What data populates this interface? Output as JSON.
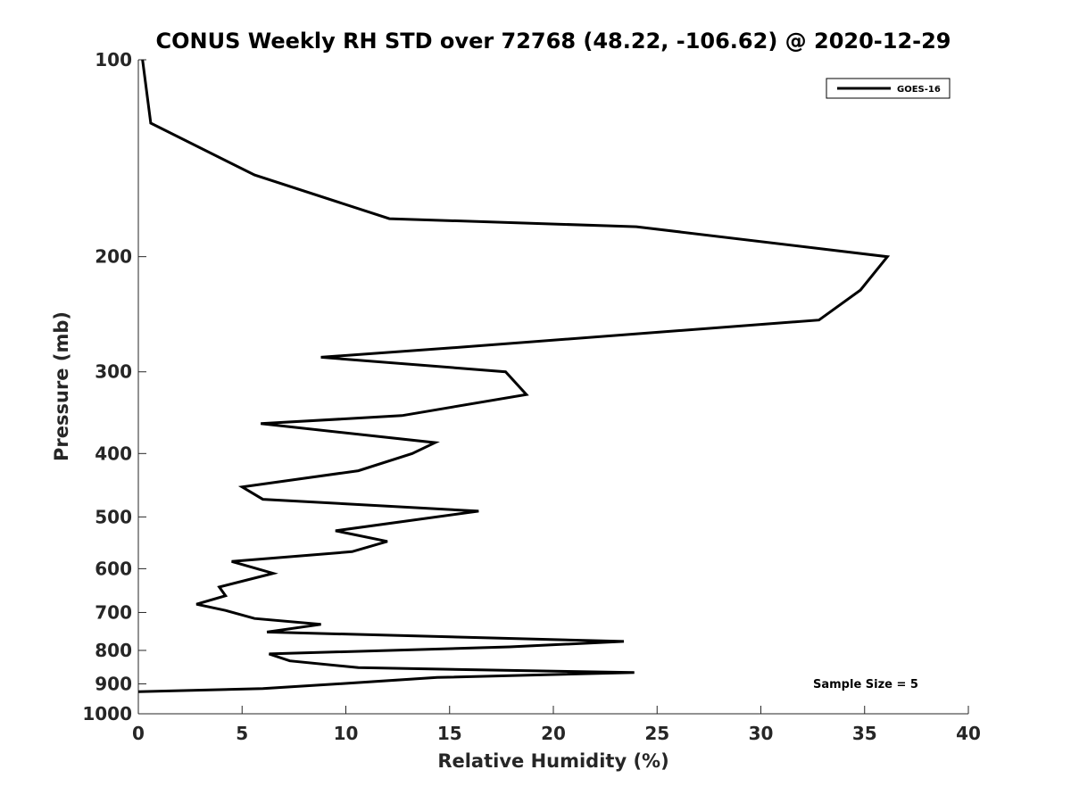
{
  "chart_data": {
    "type": "line",
    "title": "CONUS Weekly RH STD over 72768 (48.22, -106.62) @ 2020-12-29",
    "xlabel": "Relative Humidity (%)",
    "ylabel": "Pressure (mb)",
    "xlim": [
      0,
      40
    ],
    "ylim": [
      100,
      1000
    ],
    "y_scale": "log",
    "y_reversed": true,
    "x_ticks": [
      "0",
      "5",
      "10",
      "15",
      "20",
      "25",
      "30",
      "35",
      "40"
    ],
    "y_ticks": [
      "100",
      "200",
      "300",
      "400",
      "500",
      "600",
      "700",
      "800",
      "900",
      "1000"
    ],
    "grid": false,
    "legend_position": "top-right",
    "annotation": "Sample Size = 5",
    "series": [
      {
        "name": "GOES-16",
        "color": "#000000",
        "points": [
          [
            0.2,
            100
          ],
          [
            0.6,
            125
          ],
          [
            5.6,
            150
          ],
          [
            12.1,
            175
          ],
          [
            24.0,
            180
          ],
          [
            36.1,
            200
          ],
          [
            34.8,
            225
          ],
          [
            32.8,
            250
          ],
          [
            15.6,
            275
          ],
          [
            8.8,
            285
          ],
          [
            17.7,
            300
          ],
          [
            18.7,
            325
          ],
          [
            12.7,
            350
          ],
          [
            5.9,
            360
          ],
          [
            14.3,
            385
          ],
          [
            13.2,
            400
          ],
          [
            10.6,
            425
          ],
          [
            5.0,
            450
          ],
          [
            6.0,
            470
          ],
          [
            16.4,
            490
          ],
          [
            9.5,
            525
          ],
          [
            12.0,
            545
          ],
          [
            10.3,
            565
          ],
          [
            4.5,
            585
          ],
          [
            6.5,
            610
          ],
          [
            3.9,
            640
          ],
          [
            4.2,
            660
          ],
          [
            2.8,
            680
          ],
          [
            4.2,
            695
          ],
          [
            5.6,
            715
          ],
          [
            8.8,
            730
          ],
          [
            6.2,
            750
          ],
          [
            23.4,
            775
          ],
          [
            17.9,
            790
          ],
          [
            6.3,
            810
          ],
          [
            7.3,
            830
          ],
          [
            10.6,
            850
          ],
          [
            23.9,
            865
          ],
          [
            14.4,
            880
          ],
          [
            9.6,
            900
          ],
          [
            6.0,
            915
          ],
          [
            0,
            925
          ]
        ]
      }
    ]
  }
}
